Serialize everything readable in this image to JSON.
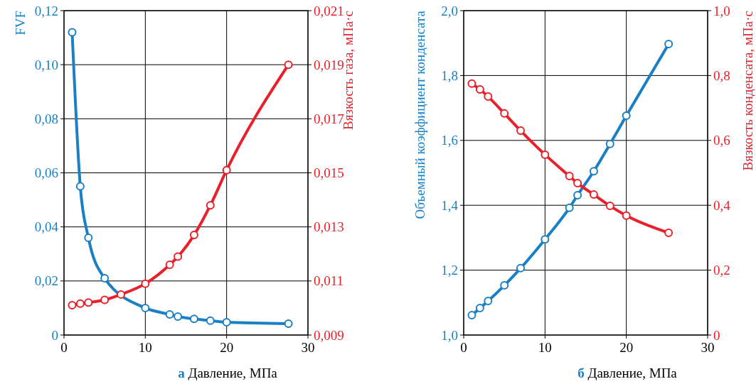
{
  "chart_data": [
    {
      "type": "line",
      "ylabel": "FVF",
      "y2label": "Вязкость газа, мПа·с",
      "xlabel": "Давление, МПа",
      "annotations": [
        "а"
      ],
      "grid": true,
      "marker": "circle",
      "line_style": "solid",
      "xlim": [
        0,
        30
      ],
      "xticks": [
        0,
        10,
        20,
        30
      ],
      "ylim": [
        0,
        0.12
      ],
      "yticks": [
        0,
        {
          "value": 0.02,
          "label": "0,02"
        },
        {
          "value": 0.04,
          "label": "0,04"
        },
        {
          "value": 0.06,
          "label": "0,06"
        },
        {
          "value": 0.08,
          "label": "0,08"
        },
        {
          "value": 0.1,
          "label": "0,10"
        },
        {
          "value": 0.12,
          "label": "0,12"
        }
      ],
      "y2lim": [
        0.009,
        0.021
      ],
      "y2ticks": [
        {
          "value": 0.009,
          "label": "0,009"
        },
        {
          "value": 0.011,
          "label": "0,011"
        },
        {
          "value": 0.013,
          "label": "0,013"
        },
        {
          "value": 0.015,
          "label": "0,015"
        },
        {
          "value": 0.017,
          "label": "0,017"
        },
        {
          "value": 0.019,
          "label": "0,019"
        },
        {
          "value": 0.021,
          "label": "0,021"
        }
      ],
      "series": [
        {
          "color": "#1a7fc4",
          "x": [
            1,
            2,
            3,
            5,
            10,
            13,
            14,
            16,
            18,
            20,
            27.6
          ],
          "values": [
            0.112,
            0.055,
            0.036,
            0.021,
            0.01,
            0.0076,
            0.0068,
            0.006,
            0.0053,
            0.0047,
            0.0042
          ]
        },
        {
          "color": "#e8202a",
          "axis": "y2",
          "x": [
            1,
            2,
            3,
            5,
            7,
            10,
            13,
            14,
            16,
            18,
            20,
            27.6
          ],
          "values": [
            0.0101,
            0.01016,
            0.0102,
            0.0103,
            0.0105,
            0.0109,
            0.0116,
            0.0119,
            0.0127,
            0.0138,
            0.0151,
            0.019
          ]
        }
      ]
    },
    {
      "type": "line",
      "ylabel": "Объемный коэффициент конденсата",
      "y2label": "Вязкость конденсата, мПа·с",
      "xlabel": "Давление, МПа",
      "annotations": [
        "б"
      ],
      "grid": true,
      "marker": "circle",
      "line_style": "solid",
      "xlim": [
        0,
        30
      ],
      "xticks": [
        0,
        10,
        20,
        30
      ],
      "ylim": [
        1,
        2
      ],
      "yticks": [
        {
          "value": 1,
          "label": "1,0"
        },
        {
          "value": 1.2,
          "label": "1,2"
        },
        {
          "value": 1.4,
          "label": "1,4"
        },
        {
          "value": 1.6,
          "label": "1,6"
        },
        {
          "value": 1.8,
          "label": "1,8"
        },
        {
          "value": 2,
          "label": "2,0"
        }
      ],
      "y2lim": [
        0,
        1
      ],
      "y2ticks": [
        0,
        {
          "value": 0.2,
          "label": "0,2"
        },
        {
          "value": 0.4,
          "label": "0,4"
        },
        {
          "value": 0.6,
          "label": "0,6"
        },
        {
          "value": 0.8,
          "label": "0,8"
        },
        {
          "value": 1,
          "label": "1,0"
        }
      ],
      "series": [
        {
          "color": "#1a7fc4",
          "x": [
            1,
            2,
            3,
            5,
            7,
            10,
            13,
            14,
            16,
            18,
            20,
            25.2
          ],
          "values": [
            1.061,
            1.083,
            1.105,
            1.153,
            1.206,
            1.295,
            1.392,
            1.431,
            1.505,
            1.589,
            1.676,
            1.897
          ]
        },
        {
          "color": "#e8202a",
          "axis": "y2",
          "x": [
            1,
            2,
            3,
            5,
            7,
            10,
            13,
            14,
            16,
            18,
            20,
            25.2
          ],
          "values": [
            0.775,
            0.757,
            0.735,
            0.683,
            0.63,
            0.556,
            0.49,
            0.468,
            0.433,
            0.398,
            0.368,
            0.315
          ]
        }
      ]
    }
  ]
}
